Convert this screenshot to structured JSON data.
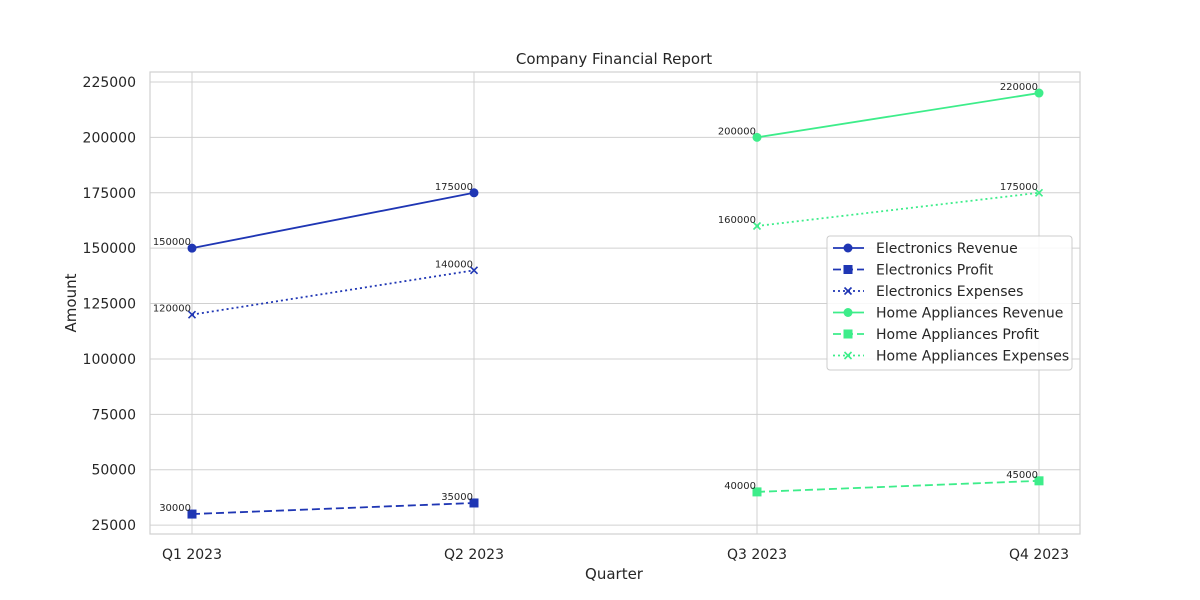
{
  "chart_data": {
    "type": "line",
    "title": "Company Financial Report",
    "xlabel": "Quarter",
    "ylabel": "Amount",
    "categories": [
      "Q1 2023",
      "Q2 2023",
      "Q3 2023",
      "Q4 2023"
    ],
    "ylim": [
      21000,
      229500
    ],
    "yticks": [
      25000,
      50000,
      75000,
      100000,
      125000,
      150000,
      175000,
      200000,
      225000
    ],
    "grid": true,
    "legend_position": "right",
    "series": [
      {
        "name": "Electronics Revenue",
        "category": "Electronics",
        "metric": "Revenue",
        "values": [
          150000,
          175000,
          null,
          null
        ],
        "color": "#1f36b4",
        "marker": "circle",
        "dash": "solid"
      },
      {
        "name": "Electronics Profit",
        "category": "Electronics",
        "metric": "Profit",
        "values": [
          30000,
          35000,
          null,
          null
        ],
        "color": "#1f36b4",
        "marker": "square",
        "dash": "dashed"
      },
      {
        "name": "Electronics Expenses",
        "category": "Electronics",
        "metric": "Expenses",
        "values": [
          120000,
          140000,
          null,
          null
        ],
        "color": "#1f36b4",
        "marker": "x",
        "dash": "dotted"
      },
      {
        "name": "Home Appliances Revenue",
        "category": "Home Appliances",
        "metric": "Revenue",
        "values": [
          null,
          null,
          200000,
          220000
        ],
        "color": "#3ded8a",
        "marker": "circle",
        "dash": "solid"
      },
      {
        "name": "Home Appliances Profit",
        "category": "Home Appliances",
        "metric": "Profit",
        "values": [
          null,
          null,
          40000,
          45000
        ],
        "color": "#3ded8a",
        "marker": "square",
        "dash": "dashed"
      },
      {
        "name": "Home Appliances Expenses",
        "category": "Home Appliances",
        "metric": "Expenses",
        "values": [
          null,
          null,
          160000,
          175000
        ],
        "color": "#3ded8a",
        "marker": "x",
        "dash": "dotted"
      }
    ]
  }
}
